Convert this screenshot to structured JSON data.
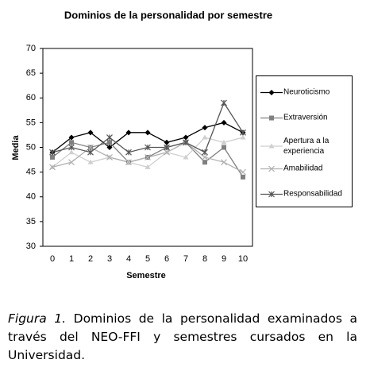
{
  "chart_data": {
    "type": "line",
    "title": "Dominios de la personalidad por semestre",
    "x_label": "Semestre",
    "y_label": "Media",
    "categories": [
      "0",
      "1",
      "2",
      "3",
      "4",
      "5",
      "6",
      "7",
      "8",
      "9",
      "10"
    ],
    "ylim": [
      30,
      70
    ],
    "yticks": [
      30,
      35,
      40,
      45,
      50,
      55,
      60,
      65,
      70
    ],
    "grid": false,
    "series": [
      {
        "name": "Neuroticismo",
        "color": "#000000",
        "marker": "diamond",
        "values": [
          49,
          52,
          53,
          50,
          53,
          53,
          51,
          52,
          54,
          55,
          53
        ]
      },
      {
        "name": "Extraversión",
        "color": "#808080",
        "marker": "square",
        "values": [
          48,
          51,
          50,
          51,
          47,
          48,
          50,
          51,
          47,
          50,
          44
        ]
      },
      {
        "name": "Apertura a la experiencia",
        "color": "#cfcfcf",
        "marker": "triangle",
        "values": [
          46,
          49,
          47,
          48,
          47,
          46,
          49,
          48,
          52,
          51,
          52
        ]
      },
      {
        "name": "Amabilidad",
        "color": "#b0b0b0",
        "marker": "x",
        "values": [
          46,
          47,
          50,
          48,
          47,
          48,
          49,
          51,
          48,
          47,
          45
        ]
      },
      {
        "name": "Responsabilidad",
        "color": "#555555",
        "marker": "star",
        "values": [
          49,
          50,
          49,
          52,
          49,
          50,
          50,
          51,
          49,
          59,
          53
        ]
      }
    ]
  },
  "caption": {
    "label": "Figura 1.",
    "text": "Dominios de la personalidad examinados a través del NEO-FFI y semestres cursados en la Universidad."
  }
}
